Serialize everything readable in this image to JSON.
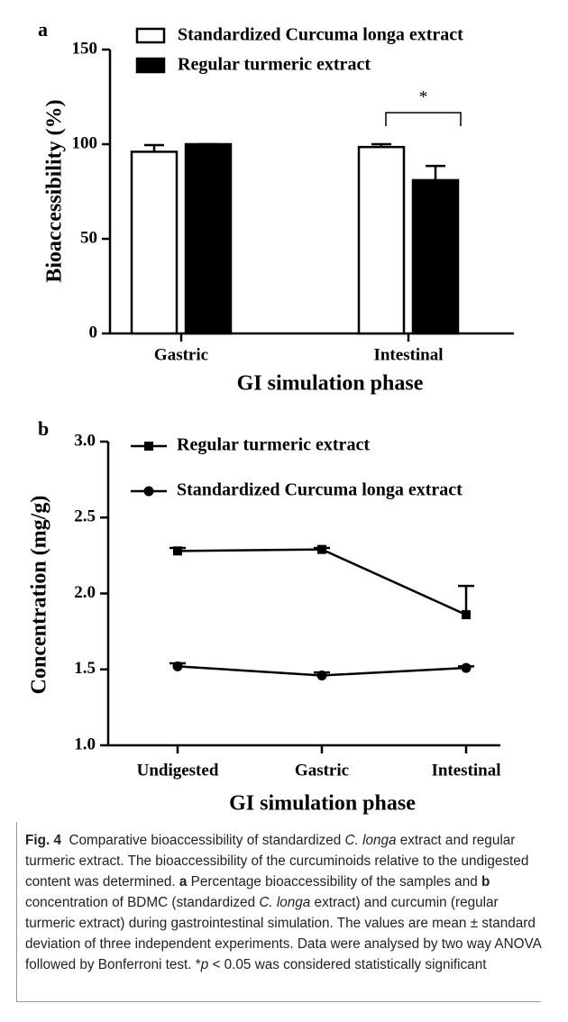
{
  "chart_data": [
    {
      "type": "bar",
      "panel": "a",
      "categories": [
        "Gastric",
        "Intestinal"
      ],
      "xlabel": "GI simulation phase",
      "ylabel": "Bioaccessibility (%)",
      "ylim": [
        0,
        150
      ],
      "yticks": [
        0,
        50,
        100,
        150
      ],
      "series": [
        {
          "name": "Standardized Curcuma longa extract",
          "color": "#ffffff",
          "values": [
            96,
            98.5
          ],
          "errors": [
            3.5,
            1.5
          ]
        },
        {
          "name": "Regular turmeric extract",
          "color": "#000000",
          "values": [
            100,
            81
          ],
          "errors": [
            0,
            7.5
          ]
        }
      ],
      "annotations": [
        "*"
      ]
    },
    {
      "type": "line",
      "panel": "b",
      "categories": [
        "Undigested",
        "Gastric",
        "Intestinal"
      ],
      "xlabel": "GI simulation phase",
      "ylabel": "Concentration (mg/g)",
      "ylim": [
        1,
        3
      ],
      "yticks": [
        {
          "value": 1,
          "label": "1.0"
        },
        {
          "value": 1.5,
          "label": "1.5"
        },
        {
          "value": 2,
          "label": "2.0"
        },
        {
          "value": 2.5,
          "label": "2.5"
        },
        {
          "value": 3,
          "label": "3.0"
        }
      ],
      "series": [
        {
          "name": "Regular turmeric extract",
          "color": "#000000",
          "marker": "square",
          "values": [
            2.28,
            2.29,
            1.86
          ],
          "errors": [
            0.02,
            0.01,
            0.19
          ]
        },
        {
          "name": "Standardized Curcuma longa extract",
          "color": "#000000",
          "marker": "circle",
          "values": [
            1.52,
            1.46,
            1.51
          ],
          "errors": [
            0.02,
            0.02,
            0.01
          ]
        }
      ]
    }
  ],
  "caption": {
    "segments": [
      "Fig. 4",
      " Comparative bioaccessibility of standardized ",
      "C. longa",
      " extract and regular turmeric extract. The bioaccessibility of the curcuminoids relative to the undigested content was determined. ",
      "a",
      " Percentage bioaccessibility of the samples and ",
      "b",
      " concentration of BDMC (standardized ",
      "C. longa",
      " extract) and curcumin (regular turmeric extract) during gastrointestinal simulation. The values are mean ± standard deviation of three independent experiments. Data were analysed by two way ANOVA followed by Bonferroni test. *",
      "p",
      " < 0.05 was considered statistically significant"
    ]
  }
}
